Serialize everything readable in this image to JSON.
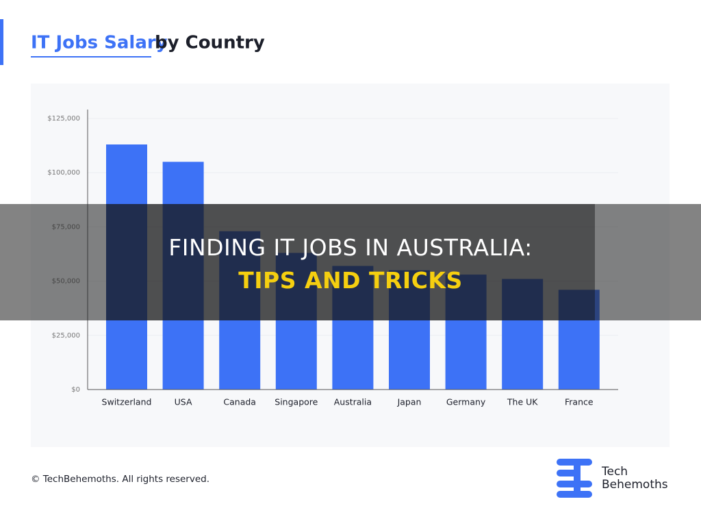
{
  "chart_data": {
    "type": "bar",
    "title_highlight": "IT Jobs Salary",
    "title_rest": "by Country",
    "categories": [
      "Switzerland",
      "USA",
      "Canada",
      "Singapore",
      "Australia",
      "Japan",
      "Germany",
      "The UK",
      "France"
    ],
    "values": [
      113000,
      105000,
      73000,
      63000,
      57000,
      55000,
      53000,
      51000,
      46000
    ],
    "color": "#3d72f6",
    "ylim": [
      0,
      125000
    ],
    "yticks": [
      {
        "value": 0,
        "label": "$0"
      },
      {
        "value": 25000,
        "label": "$25,000"
      },
      {
        "value": 50000,
        "label": "$50,000"
      },
      {
        "value": 75000,
        "label": "$75,000"
      },
      {
        "value": 100000,
        "label": "$100,000"
      },
      {
        "value": 125000,
        "label": "$125,000"
      }
    ],
    "grid": true
  },
  "overlay": {
    "headline": "FINDING IT JOBS IN AUSTRALIA:",
    "subline": "TIPS AND TRICKS"
  },
  "footer": {
    "copyright": "© TechBehemoths. All rights reserved.",
    "logo_line1": "Tech",
    "logo_line2": "Behemoths"
  }
}
